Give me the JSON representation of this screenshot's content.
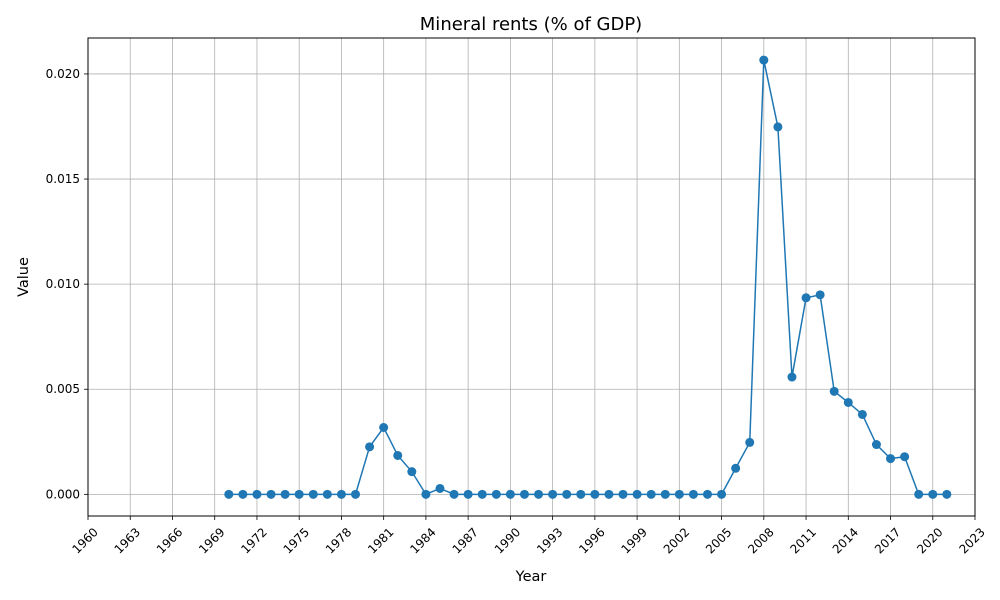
{
  "chart_data": {
    "type": "line",
    "title": "Mineral rents (% of GDP)",
    "xlabel": "Year",
    "ylabel": "Value",
    "xlim": [
      1960,
      2023
    ],
    "ylim": [
      -0.00103,
      0.02171
    ],
    "x_ticks": [
      1960,
      1963,
      1966,
      1969,
      1972,
      1975,
      1978,
      1981,
      1984,
      1987,
      1990,
      1993,
      1996,
      1999,
      2002,
      2005,
      2008,
      2011,
      2014,
      2017,
      2020,
      2023
    ],
    "y_ticks": [
      0.0,
      0.005,
      0.01,
      0.015,
      0.02
    ],
    "y_tick_labels": [
      "0.000",
      "0.005",
      "0.010",
      "0.015",
      "0.020"
    ],
    "grid": true,
    "color": "#1f77b4",
    "marker": "circle",
    "x": [
      1970,
      1971,
      1972,
      1973,
      1974,
      1975,
      1976,
      1977,
      1978,
      1979,
      1980,
      1981,
      1982,
      1983,
      1984,
      1985,
      1986,
      1987,
      1988,
      1989,
      1990,
      1991,
      1992,
      1993,
      1994,
      1995,
      1996,
      1997,
      1998,
      1999,
      2000,
      2001,
      2002,
      2003,
      2004,
      2005,
      2006,
      2007,
      2008,
      2009,
      2010,
      2011,
      2012,
      2013,
      2014,
      2015,
      2016,
      2017,
      2018,
      2019,
      2020,
      2021
    ],
    "y": [
      0.0,
      0.0,
      0.0,
      0.0,
      0.0,
      0.0,
      0.0,
      0.0,
      0.0,
      0.0,
      0.00226,
      0.00318,
      0.00185,
      0.00108,
      0.0,
      0.00028,
      0.0,
      0.0,
      0.0,
      0.0,
      0.0,
      0.0,
      0.0,
      0.0,
      0.0,
      0.0,
      0.0,
      0.0,
      0.0,
      0.0,
      0.0,
      0.0,
      0.0,
      0.0,
      0.0,
      0.0,
      0.00124,
      0.00247,
      0.02066,
      0.01748,
      0.00558,
      0.00935,
      0.00949,
      0.0049,
      0.00437,
      0.0038,
      0.00237,
      0.0017,
      0.00179,
      0.0,
      0.0,
      0.0
    ]
  }
}
